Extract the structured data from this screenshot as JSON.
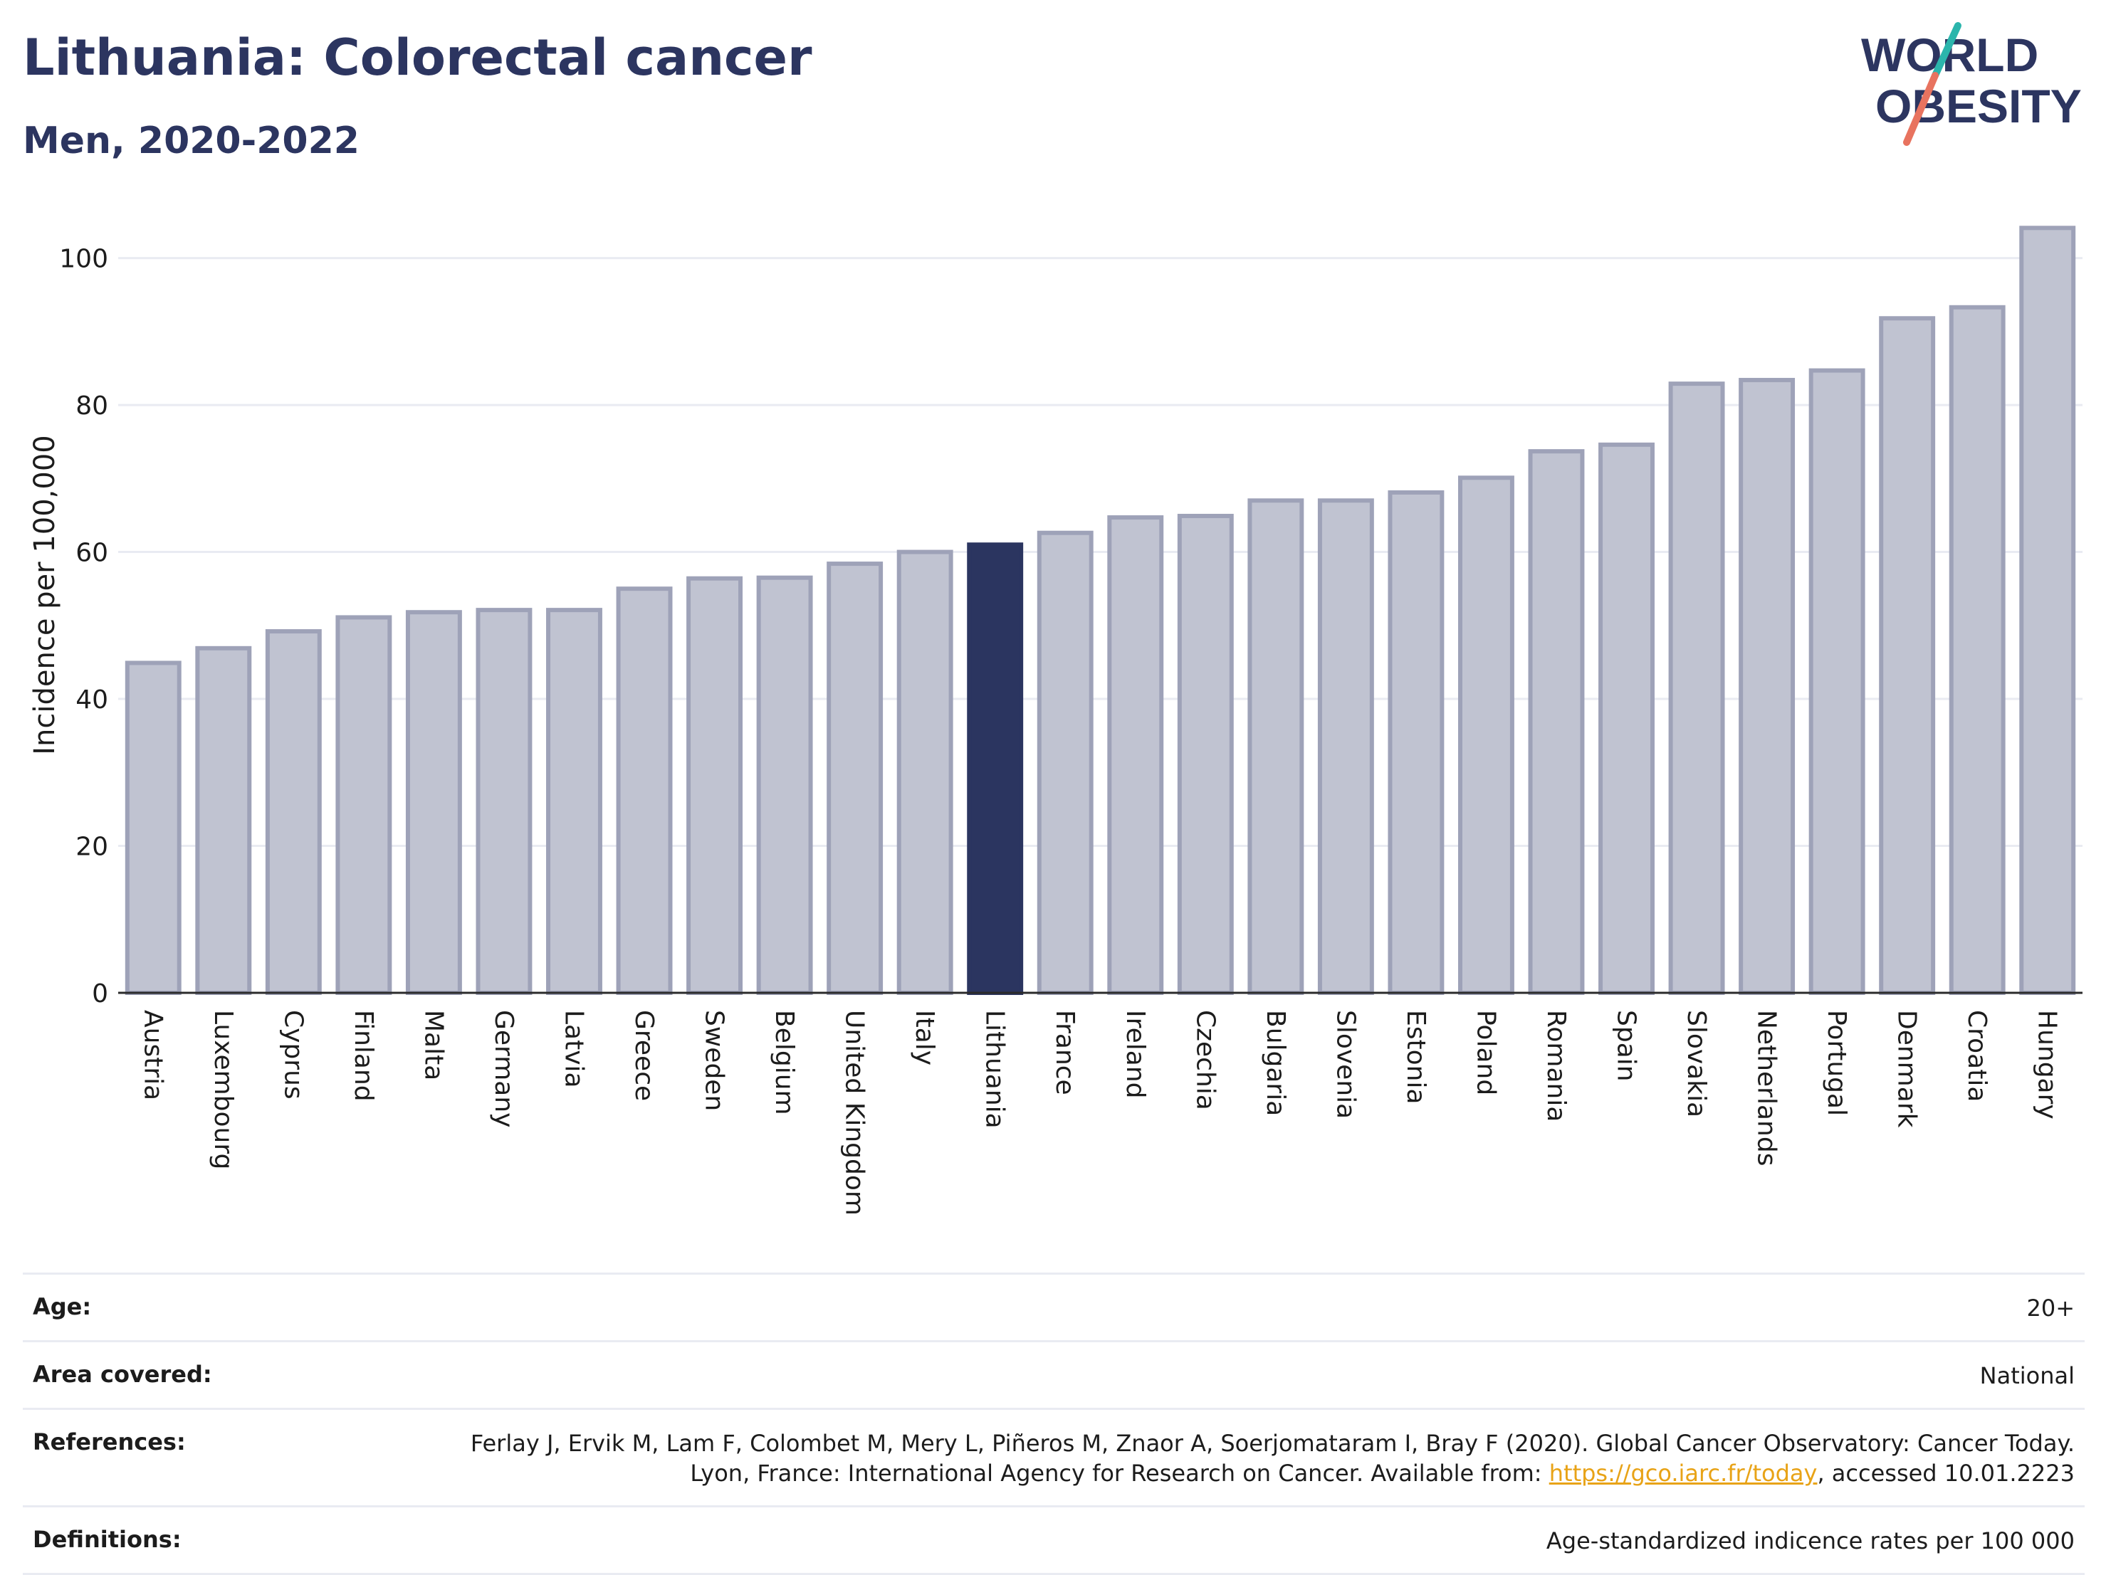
{
  "header": {
    "title": "Lithuania: Colorectal cancer",
    "subtitle": "Men, 2020-2022"
  },
  "logo": {
    "line1": "WORLD",
    "line2": "OBESITY"
  },
  "colors": {
    "highlight": "#2b3560",
    "bar_fill": "#c0c3d1",
    "bar_stroke": "#9ea2b8",
    "title": "#2c3560",
    "grid": "#e9ebf2",
    "logo_teal": "#2bb5ac",
    "logo_coral": "#e8735f"
  },
  "chart_data": {
    "type": "bar",
    "title": "Lithuania: Colorectal cancer",
    "subtitle": "Men, 2020-2022",
    "xlabel": "",
    "ylabel": "Incidence per 100,000",
    "ylim": [
      0,
      108
    ],
    "yticks": [
      0,
      20,
      40,
      60,
      80,
      100
    ],
    "grid": true,
    "highlight": "Lithuania",
    "categories": [
      "Austria",
      "Luxembourg",
      "Cyprus",
      "Finland",
      "Malta",
      "Germany",
      "Latvia",
      "Greece",
      "Sweden",
      "Belgium",
      "United Kingdom",
      "Italy",
      "Lithuania",
      "France",
      "Ireland",
      "Czechia",
      "Bulgaria",
      "Slovenia",
      "Estonia",
      "Poland",
      "Romania",
      "Spain",
      "Slovakia",
      "Netherlands",
      "Portugal",
      "Denmark",
      "Croatia",
      "Hungary"
    ],
    "values": [
      44.9,
      46.9,
      49.2,
      51.1,
      51.8,
      52.1,
      52.1,
      55.0,
      56.4,
      56.5,
      58.4,
      60.0,
      61.0,
      62.6,
      64.7,
      64.9,
      67.0,
      67.0,
      68.1,
      70.1,
      73.7,
      74.6,
      82.9,
      83.4,
      84.7,
      91.8,
      93.3,
      104.1
    ]
  },
  "meta": {
    "age_label": "Age:",
    "age_value": "20+",
    "area_label": "Area covered:",
    "area_value": "National",
    "references_label": "References:",
    "references_text_1": "Ferlay J, Ervik M, Lam F, Colombet M, Mery L, Piñeros M, Znaor A, Soerjomataram I, Bray F (2020). Global Cancer Observatory: Cancer Today. Lyon, France: International Agency for Research on Cancer. Available from: ",
    "references_link": "https://gco.iarc.fr/today",
    "references_text_2": ", accessed 10.01.2223",
    "definitions_label": "Definitions:",
    "definitions_value": "Age-standardized indicence rates per 100 000"
  }
}
